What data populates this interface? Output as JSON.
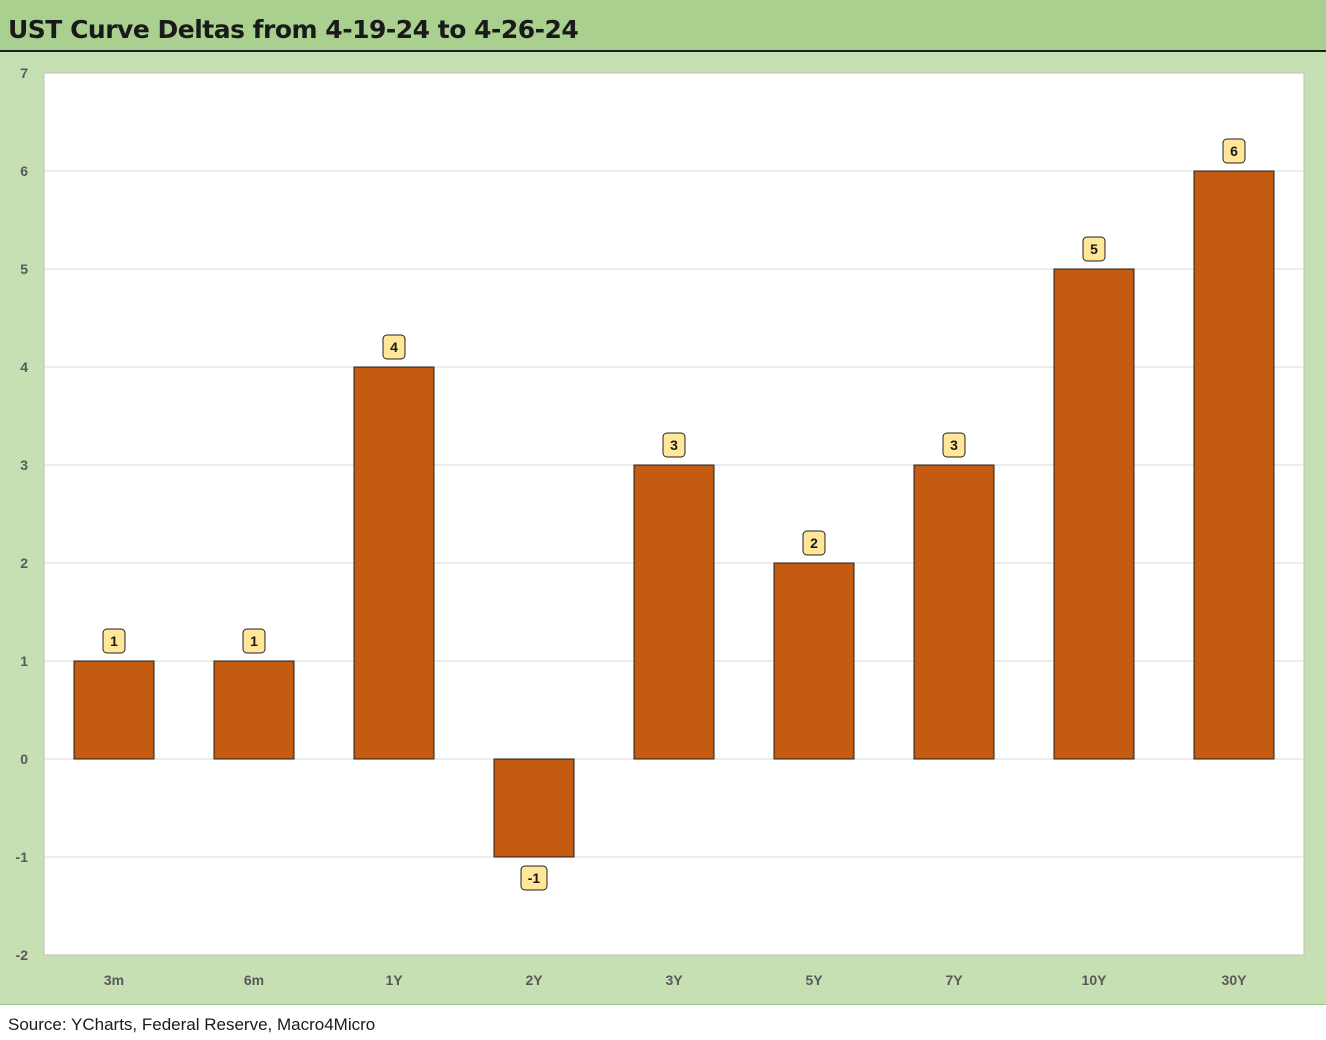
{
  "title": "UST Curve Deltas from 4-19-24 to 4-26-24",
  "source": "Source: YCharts, Federal Reserve, Macro4Micro",
  "colors": {
    "bar": "#c55a11",
    "bar_border": "#1f1f1f",
    "label_fill": "#ffe699",
    "title_bg": "#a9d08e",
    "chart_bg": "#c6e0b4",
    "plot_bg": "#ffffff",
    "grid": "#d9d9d9"
  },
  "chart_data": {
    "type": "bar",
    "title": "UST Curve Deltas from 4-19-24 to 4-26-24",
    "xlabel": "",
    "ylabel": "",
    "categories": [
      "3m",
      "6m",
      "1Y",
      "2Y",
      "3Y",
      "5Y",
      "7Y",
      "10Y",
      "30Y"
    ],
    "values": [
      1,
      1,
      4,
      -1,
      3,
      2,
      3,
      5,
      6
    ],
    "ylim": [
      -2,
      7
    ],
    "yticks": [
      -2,
      -1,
      0,
      1,
      2,
      3,
      4,
      5,
      6,
      7
    ],
    "grid": true,
    "legend": "none",
    "data_labels": true
  }
}
